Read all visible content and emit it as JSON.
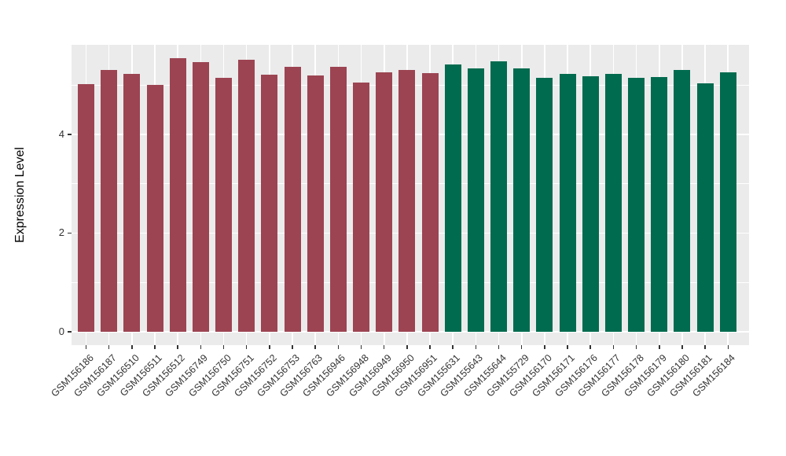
{
  "chart_data": {
    "type": "bar",
    "title": "",
    "xlabel": "",
    "ylabel": "Expression Level",
    "categories": [
      "GSM156186",
      "GSM156187",
      "GSM156510",
      "GSM156511",
      "GSM156512",
      "GSM156749",
      "GSM156750",
      "GSM156751",
      "GSM156752",
      "GSM156753",
      "GSM156763",
      "GSM156946",
      "GSM156948",
      "GSM156949",
      "GSM156950",
      "GSM156951",
      "GSM155631",
      "GSM155643",
      "GSM155644",
      "GSM155729",
      "GSM156170",
      "GSM156171",
      "GSM156176",
      "GSM156177",
      "GSM156178",
      "GSM156179",
      "GSM156180",
      "GSM156181",
      "GSM156184"
    ],
    "values": [
      5.01,
      5.3,
      5.22,
      5.0,
      5.54,
      5.46,
      5.14,
      5.51,
      5.21,
      5.37,
      5.19,
      5.37,
      5.05,
      5.26,
      5.31,
      5.24,
      5.41,
      5.34,
      5.47,
      5.34,
      5.15,
      5.23,
      5.17,
      5.23,
      5.14,
      5.16,
      5.3,
      5.03,
      5.26
    ],
    "bar_groups": [
      "group1",
      "group1",
      "group1",
      "group1",
      "group1",
      "group1",
      "group1",
      "group1",
      "group1",
      "group1",
      "group1",
      "group1",
      "group1",
      "group1",
      "group1",
      "group1",
      "group2",
      "group2",
      "group2",
      "group2",
      "group2",
      "group2",
      "group2",
      "group2",
      "group2",
      "group2",
      "group2",
      "group2",
      "group2"
    ],
    "group_colors": {
      "group1": "#9C4452",
      "group2": "#006B4F"
    },
    "ylim": [
      0,
      5.8
    ],
    "yticks_major": [
      0,
      2,
      4
    ],
    "ytick_labels": [
      "0",
      "2",
      "4"
    ],
    "yticks_minor": [
      1,
      3,
      5
    ],
    "grid": "white gridlines on light gray panel (ggplot style)",
    "legend_position": "none",
    "x_tick_rotation_deg": 45
  },
  "style": {
    "page_bg": "#FFFFFF",
    "panel_bg": "#EBEBEB",
    "grid_color": "#FFFFFF",
    "axis_text_color": "#333333",
    "tick_mark_color": "#333333",
    "axis_title_color": "#000000"
  }
}
